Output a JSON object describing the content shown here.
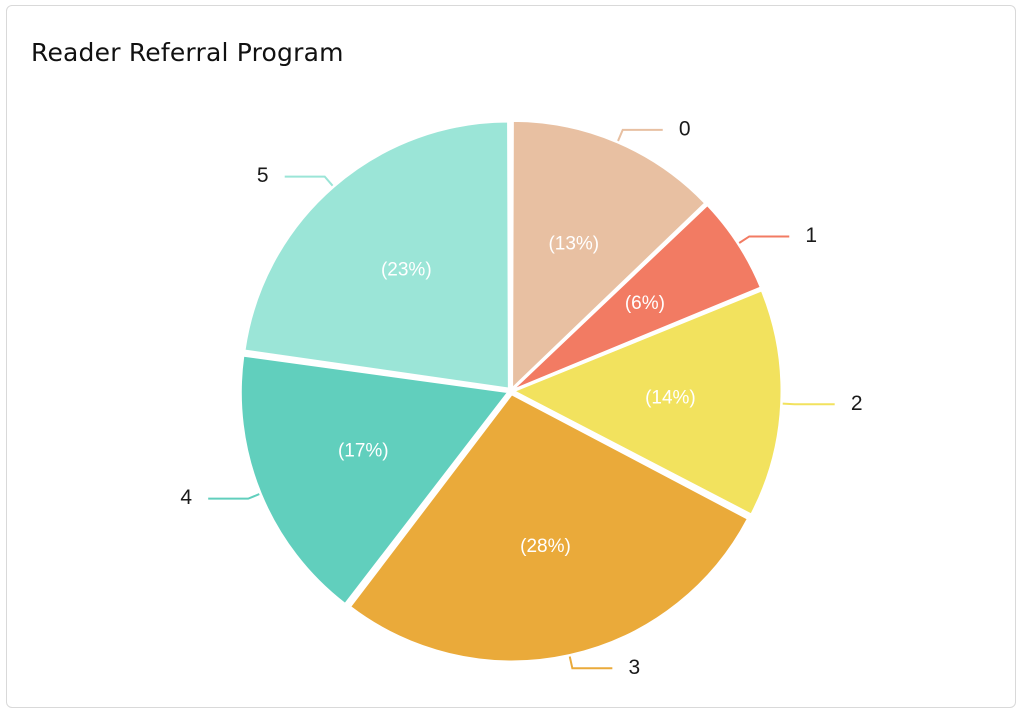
{
  "card": {
    "title": "Reader Referral Program"
  },
  "chart_data": {
    "type": "pie",
    "title": "Reader Referral Program",
    "slices": [
      {
        "label": "0",
        "percent": 13,
        "percent_label": "(13%)",
        "color": "#E8C0A2"
      },
      {
        "label": "1",
        "percent": 6,
        "percent_label": "(6%)",
        "color": "#F27B63"
      },
      {
        "label": "2",
        "percent": 14,
        "percent_label": "(14%)",
        "color": "#F2E25E"
      },
      {
        "label": "3",
        "percent": 28,
        "percent_label": "(28%)",
        "color": "#EAAA3A"
      },
      {
        "label": "4",
        "percent": 17,
        "percent_label": "(17%)",
        "color": "#61CFBD"
      },
      {
        "label": "5",
        "percent": 23,
        "percent_label": "(23%)",
        "color": "#9BE5D7"
      }
    ]
  }
}
